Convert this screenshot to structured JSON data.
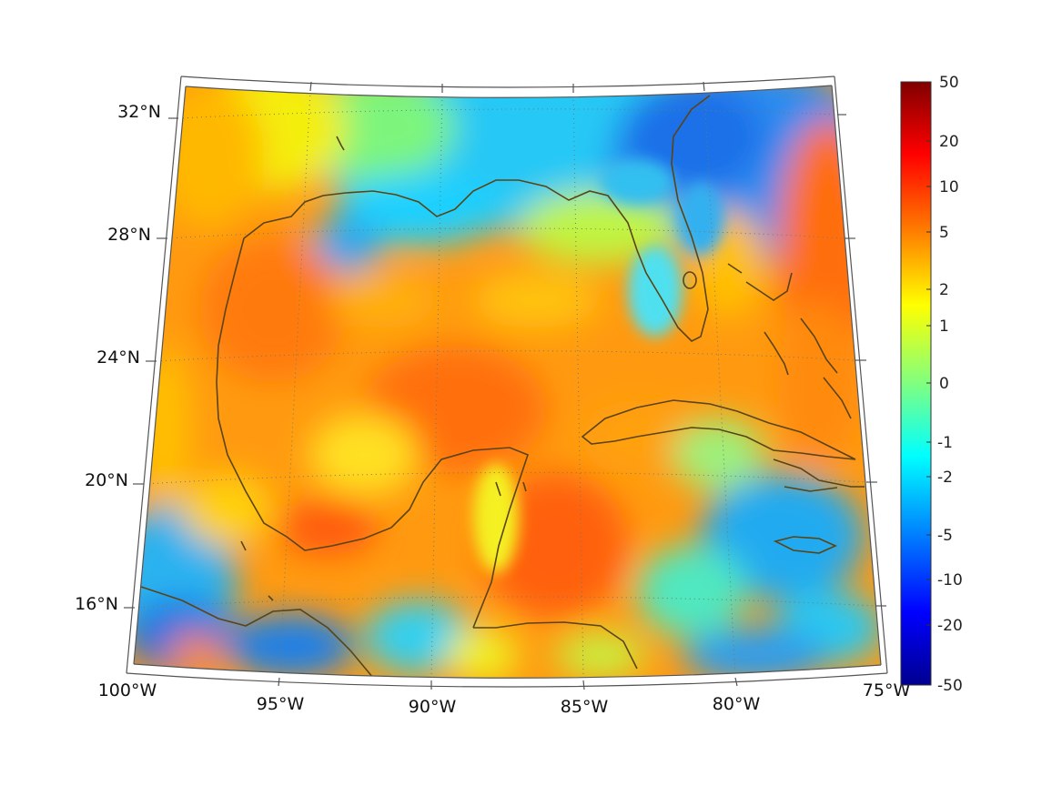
{
  "map": {
    "lat_labels": [
      "32°N",
      "28°N",
      "24°N",
      "20°N",
      "16°N"
    ],
    "lon_labels": [
      "100°W",
      "95°W",
      "90°W",
      "85°W",
      "80°W",
      "75°W"
    ],
    "coastline_color": "#5a4416",
    "graticule": "dotted"
  },
  "colorbar": {
    "tick_labels": [
      "50",
      "20",
      "10",
      "5",
      "2",
      "1",
      "0",
      "-1",
      "-2",
      "-5",
      "-10",
      "-20",
      "-50"
    ],
    "colormap": "jet",
    "max_color": "#800000",
    "min_color": "#00008f"
  }
}
